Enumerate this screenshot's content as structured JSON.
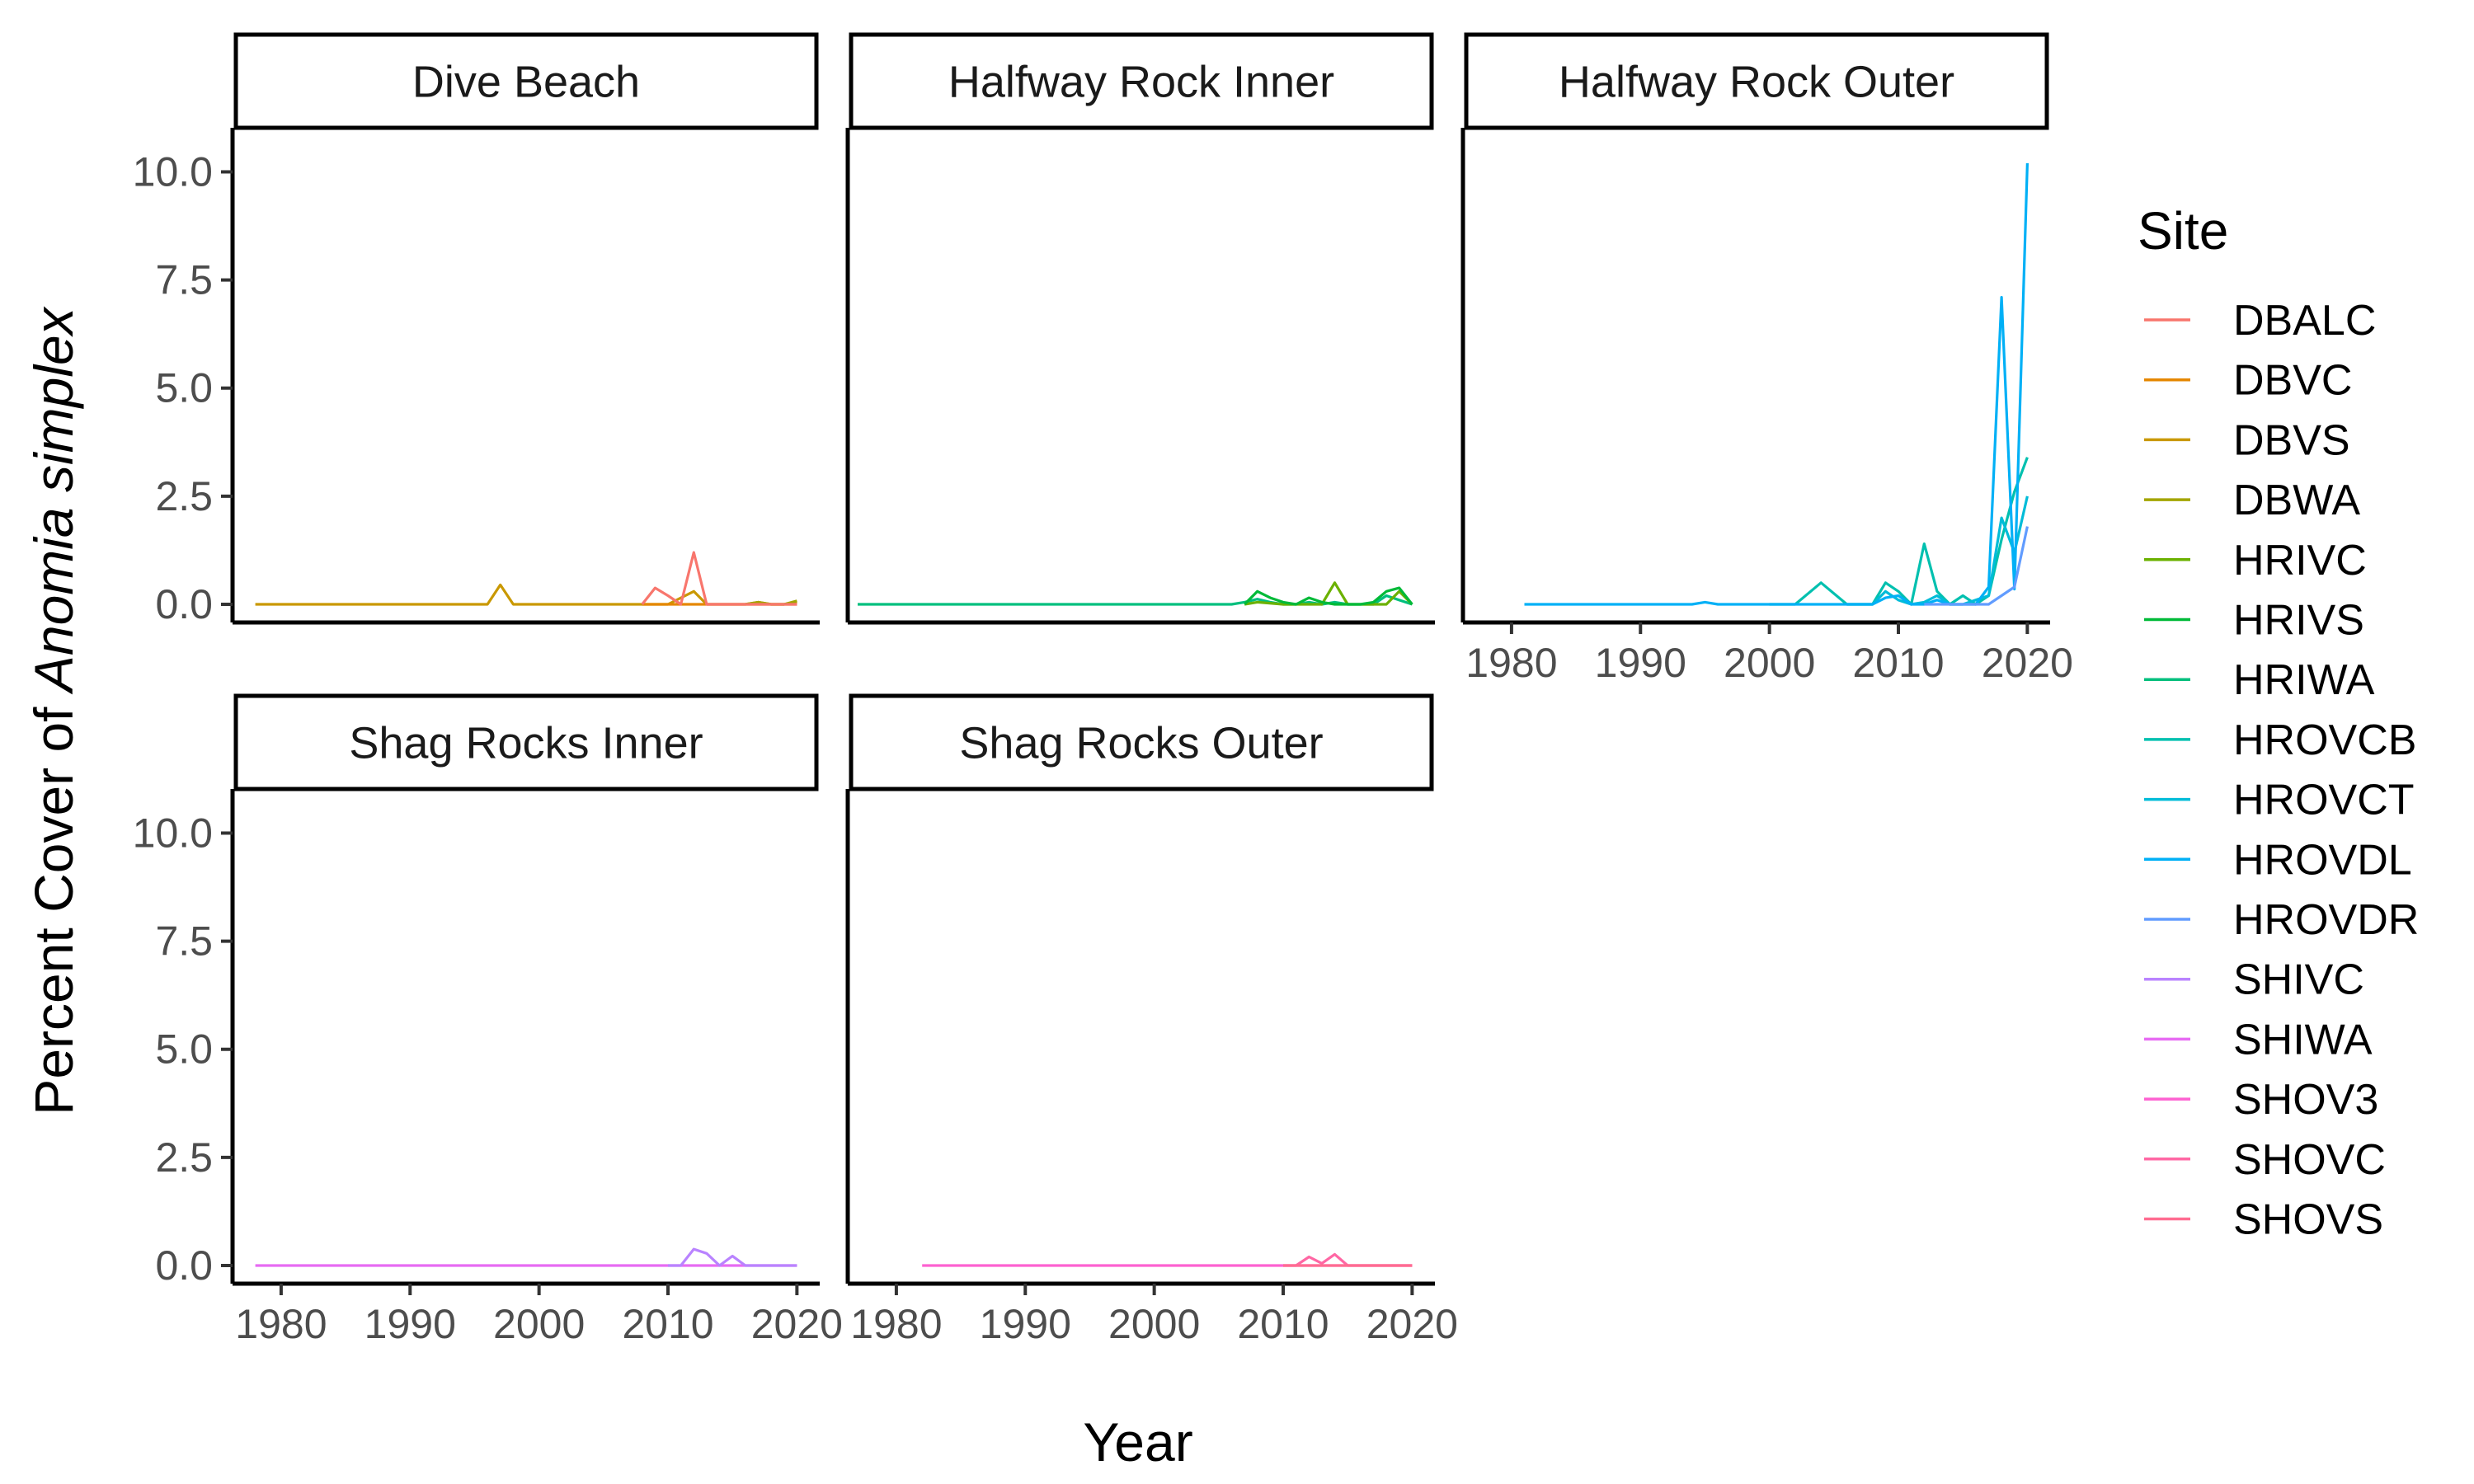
{
  "chart_data": {
    "type": "line",
    "xlabel": "Year",
    "ylabel_prefix": "Percent Cover of ",
    "ylabel_species": "Anomia simplex",
    "xlim": [
      1977,
      2021
    ],
    "ylim": [
      0,
      10.6
    ],
    "x_ticks": [
      1980,
      1990,
      2000,
      2010,
      2020
    ],
    "x_tick_labels": [
      "1980",
      "1990",
      "2000",
      "2010",
      "2020"
    ],
    "y_ticks": [
      0,
      2.5,
      5,
      7.5,
      10
    ],
    "y_tick_labels": [
      "0.0",
      "2.5",
      "5.0",
      "7.5",
      "10.0"
    ],
    "grid": false,
    "legend": {
      "title": "Site",
      "position": "right",
      "entries": [
        {
          "name": "DBALC",
          "color": "#F8766D"
        },
        {
          "name": "DBVC",
          "color": "#E58700"
        },
        {
          "name": "DBVS",
          "color": "#C99800"
        },
        {
          "name": "DBWA",
          "color": "#A3A500"
        },
        {
          "name": "HRIVC",
          "color": "#6BB100"
        },
        {
          "name": "HRIVS",
          "color": "#00BA38"
        },
        {
          "name": "HRIWA",
          "color": "#00BF7D"
        },
        {
          "name": "HROVCB",
          "color": "#00C0AF"
        },
        {
          "name": "HROVCT",
          "color": "#00BCD8"
        },
        {
          "name": "HROVDL",
          "color": "#00B0F6"
        },
        {
          "name": "HROVDR",
          "color": "#619CFF"
        },
        {
          "name": "SHIVC",
          "color": "#B983FF"
        },
        {
          "name": "SHIWA",
          "color": "#E76BF3"
        },
        {
          "name": "SHOV3",
          "color": "#FD61D1"
        },
        {
          "name": "SHOVC",
          "color": "#FF67A4"
        },
        {
          "name": "SHOVS",
          "color": "#FF6C91"
        }
      ]
    },
    "panels": [
      {
        "title": "Dive Beach",
        "series": [
          {
            "name": "DBVS",
            "color": "#C99800",
            "x": [
              1978,
              1985,
              1990,
              1996,
              1997,
              1998,
              2005,
              2010,
              2012,
              2013,
              2014,
              2016,
              2017,
              2018,
              2019,
              2020
            ],
            "y": [
              0,
              0,
              0,
              0,
              0.45,
              0,
              0,
              0,
              0.3,
              0,
              0,
              0,
              0.05,
              0,
              0,
              0.05
            ]
          },
          {
            "name": "DBVC",
            "color": "#E58700",
            "x": [
              2008,
              2010,
              2012,
              2014,
              2016,
              2018,
              2020
            ],
            "y": [
              0,
              0,
              0,
              0,
              0,
              0,
              0
            ]
          },
          {
            "name": "DBWA",
            "color": "#A3A500",
            "x": [
              2016,
              2017,
              2018,
              2019,
              2020
            ],
            "y": [
              0,
              0.05,
              0,
              0,
              0.08
            ]
          },
          {
            "name": "DBALC",
            "color": "#F8766D",
            "x": [
              2008,
              2009,
              2010,
              2011,
              2012,
              2013,
              2014,
              2015,
              2016,
              2017,
              2018,
              2019,
              2020
            ],
            "y": [
              0,
              0.38,
              0.2,
              0,
              1.2,
              0,
              0,
              0,
              0,
              0,
              0,
              0,
              0
            ]
          }
        ]
      },
      {
        "title": "Halfway Rock Inner",
        "series": [
          {
            "name": "HRIWA",
            "color": "#00BF7D",
            "x": [
              1977,
              1990,
              2000,
              2006,
              2007,
              2008,
              2009,
              2010,
              2011,
              2012,
              2013,
              2014,
              2015,
              2016,
              2017,
              2018,
              2019,
              2020
            ],
            "y": [
              0,
              0,
              0,
              0,
              0.05,
              0.12,
              0.05,
              0,
              0,
              0.05,
              0,
              0.05,
              0,
              0,
              0,
              0.2,
              0.1,
              0
            ]
          },
          {
            "name": "HRIVC",
            "color": "#6BB100",
            "x": [
              2007,
              2008,
              2010,
              2012,
              2013,
              2014,
              2015,
              2016,
              2017,
              2018,
              2019,
              2020
            ],
            "y": [
              0,
              0.05,
              0,
              0,
              0,
              0.5,
              0,
              0,
              0,
              0,
              0.3,
              0
            ]
          },
          {
            "name": "HRIVS",
            "color": "#00BA38",
            "x": [
              2007,
              2008,
              2009,
              2010,
              2011,
              2012,
              2013,
              2014,
              2015,
              2016,
              2017,
              2018,
              2019,
              2020
            ],
            "y": [
              0,
              0.3,
              0.15,
              0.05,
              0,
              0.15,
              0.05,
              0,
              0,
              0,
              0.05,
              0.3,
              0.38,
              0
            ]
          }
        ]
      },
      {
        "title": "Halfway Rock Outer",
        "series": [
          {
            "name": "HROVCB",
            "color": "#00C0AF",
            "x": [
              2000,
              2002,
              2004,
              2006,
              2008,
              2009,
              2010,
              2011,
              2012,
              2013,
              2014,
              2015,
              2016,
              2017,
              2018,
              2019,
              2020
            ],
            "y": [
              0,
              0,
              0.5,
              0,
              0,
              0.5,
              0.3,
              0,
              1.4,
              0.3,
              0,
              0.2,
              0,
              0.2,
              1.5,
              2.6,
              3.4
            ]
          },
          {
            "name": "HROVCT",
            "color": "#00BCD8",
            "x": [
              2006,
              2008,
              2009,
              2010,
              2011,
              2012,
              2013,
              2014,
              2015,
              2016,
              2017,
              2018,
              2019,
              2020
            ],
            "y": [
              0,
              0,
              0.3,
              0.1,
              0,
              0.05,
              0.2,
              0,
              0,
              0.1,
              0.2,
              2.0,
              1.2,
              2.5
            ]
          },
          {
            "name": "HROVDL",
            "color": "#00B0F6",
            "x": [
              1981,
              1990,
              1994,
              1995,
              1996,
              2000,
              2005,
              2008,
              2009,
              2010,
              2011,
              2012,
              2013,
              2014,
              2015,
              2016,
              2017,
              2018,
              2019,
              2020
            ],
            "y": [
              0,
              0,
              0,
              0.05,
              0,
              0,
              0,
              0,
              0.15,
              0.2,
              0,
              0,
              0.1,
              0,
              0,
              0,
              0.4,
              7.1,
              0.35,
              10.2
            ]
          },
          {
            "name": "HROVDR",
            "color": "#619CFF",
            "x": [
              2012,
              2013,
              2014,
              2015,
              2016,
              2017,
              2018,
              2019,
              2020
            ],
            "y": [
              0,
              0,
              0,
              0,
              0,
              0,
              0.2,
              0.4,
              1.8
            ]
          }
        ]
      },
      {
        "title": "Shag Rocks Inner",
        "series": [
          {
            "name": "SHIWA",
            "color": "#E76BF3",
            "x": [
              1978,
              1990,
              2000,
              2010,
              2020
            ],
            "y": [
              0,
              0,
              0,
              0,
              0
            ]
          },
          {
            "name": "SHIVC",
            "color": "#B983FF",
            "x": [
              2010,
              2011,
              2012,
              2013,
              2014,
              2015,
              2016,
              2017,
              2018,
              2019,
              2020
            ],
            "y": [
              0,
              0,
              0.38,
              0.28,
              0,
              0.22,
              0,
              0,
              0,
              0,
              0
            ]
          }
        ]
      },
      {
        "title": "Shag Rocks Outer",
        "series": [
          {
            "name": "SHOV3",
            "color": "#FD61D1",
            "x": [
              1982,
              1990,
              2000,
              2010,
              2020
            ],
            "y": [
              0,
              0,
              0,
              0,
              0
            ]
          },
          {
            "name": "SHOVC",
            "color": "#FF67A4",
            "x": [
              2010,
              2011,
              2012,
              2013,
              2014,
              2015,
              2016,
              2017,
              2018,
              2019,
              2020
            ],
            "y": [
              0,
              0,
              0.2,
              0.05,
              0.26,
              0,
              0,
              0,
              0,
              0,
              0
            ]
          },
          {
            "name": "SHOVS",
            "color": "#FF6C91",
            "x": [
              2010,
              2012,
              2014,
              2016,
              2018,
              2020
            ],
            "y": [
              0,
              0,
              0,
              0,
              0,
              0
            ]
          }
        ]
      }
    ]
  }
}
